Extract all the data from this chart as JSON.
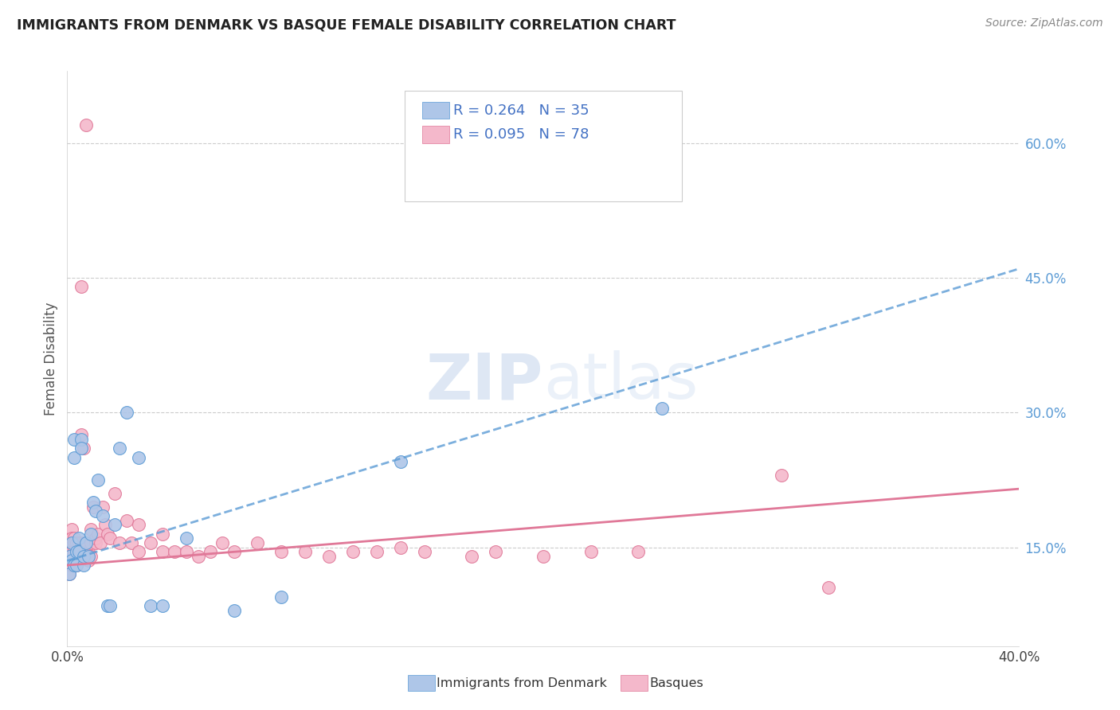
{
  "title": "IMMIGRANTS FROM DENMARK VS BASQUE FEMALE DISABILITY CORRELATION CHART",
  "source": "Source: ZipAtlas.com",
  "ylabel": "Female Disability",
  "xlim": [
    0.0,
    0.4
  ],
  "ylim": [
    0.04,
    0.68
  ],
  "right_yticks": [
    0.15,
    0.3,
    0.45,
    0.6
  ],
  "right_yticklabels": [
    "15.0%",
    "30.0%",
    "45.0%",
    "60.0%"
  ],
  "grid_yticks": [
    0.15,
    0.3,
    0.45,
    0.6
  ],
  "series1_color": "#aec6e8",
  "series1_edge": "#5b9bd5",
  "series2_color": "#f4b8cb",
  "series2_edge": "#e07898",
  "trend1_color": "#5b9bd5",
  "trend2_color": "#e07898",
  "legend_R1": "R = 0.264",
  "legend_N1": "N = 35",
  "legend_R2": "R = 0.095",
  "legend_N2": "N = 78",
  "legend_label1": "Immigrants from Denmark",
  "legend_label2": "Basques",
  "watermark_zip": "ZIP",
  "watermark_atlas": "atlas",
  "denmark_x": [
    0.001,
    0.001,
    0.002,
    0.002,
    0.003,
    0.003,
    0.003,
    0.004,
    0.004,
    0.005,
    0.005,
    0.006,
    0.006,
    0.007,
    0.007,
    0.008,
    0.009,
    0.01,
    0.011,
    0.012,
    0.013,
    0.015,
    0.017,
    0.018,
    0.02,
    0.022,
    0.025,
    0.03,
    0.035,
    0.04,
    0.05,
    0.07,
    0.09,
    0.14,
    0.25
  ],
  "denmark_y": [
    0.14,
    0.12,
    0.155,
    0.135,
    0.27,
    0.25,
    0.13,
    0.145,
    0.13,
    0.16,
    0.145,
    0.27,
    0.26,
    0.13,
    0.14,
    0.155,
    0.14,
    0.165,
    0.2,
    0.19,
    0.225,
    0.185,
    0.085,
    0.085,
    0.175,
    0.26,
    0.3,
    0.25,
    0.085,
    0.085,
    0.16,
    0.08,
    0.095,
    0.245,
    0.305
  ],
  "basque_x": [
    0.001,
    0.001,
    0.001,
    0.001,
    0.001,
    0.002,
    0.002,
    0.002,
    0.002,
    0.002,
    0.002,
    0.003,
    0.003,
    0.003,
    0.003,
    0.003,
    0.004,
    0.004,
    0.004,
    0.004,
    0.005,
    0.005,
    0.005,
    0.006,
    0.006,
    0.006,
    0.007,
    0.007,
    0.007,
    0.007,
    0.008,
    0.008,
    0.009,
    0.009,
    0.01,
    0.01,
    0.01,
    0.011,
    0.012,
    0.012,
    0.013,
    0.014,
    0.015,
    0.016,
    0.017,
    0.018,
    0.02,
    0.022,
    0.025,
    0.027,
    0.03,
    0.03,
    0.035,
    0.04,
    0.04,
    0.045,
    0.05,
    0.055,
    0.06,
    0.065,
    0.07,
    0.08,
    0.09,
    0.1,
    0.11,
    0.12,
    0.13,
    0.14,
    0.15,
    0.17,
    0.18,
    0.2,
    0.22,
    0.24,
    0.3,
    0.32,
    0.006,
    0.008
  ],
  "basque_y": [
    0.13,
    0.145,
    0.155,
    0.14,
    0.12,
    0.135,
    0.155,
    0.17,
    0.145,
    0.16,
    0.13,
    0.145,
    0.135,
    0.16,
    0.14,
    0.155,
    0.15,
    0.145,
    0.155,
    0.13,
    0.155,
    0.14,
    0.145,
    0.14,
    0.155,
    0.275,
    0.26,
    0.14,
    0.15,
    0.155,
    0.145,
    0.155,
    0.135,
    0.145,
    0.155,
    0.14,
    0.17,
    0.195,
    0.155,
    0.16,
    0.165,
    0.155,
    0.195,
    0.175,
    0.165,
    0.16,
    0.21,
    0.155,
    0.18,
    0.155,
    0.145,
    0.175,
    0.155,
    0.145,
    0.165,
    0.145,
    0.145,
    0.14,
    0.145,
    0.155,
    0.145,
    0.155,
    0.145,
    0.145,
    0.14,
    0.145,
    0.145,
    0.15,
    0.145,
    0.14,
    0.145,
    0.14,
    0.145,
    0.145,
    0.23,
    0.105,
    0.44,
    0.62
  ]
}
